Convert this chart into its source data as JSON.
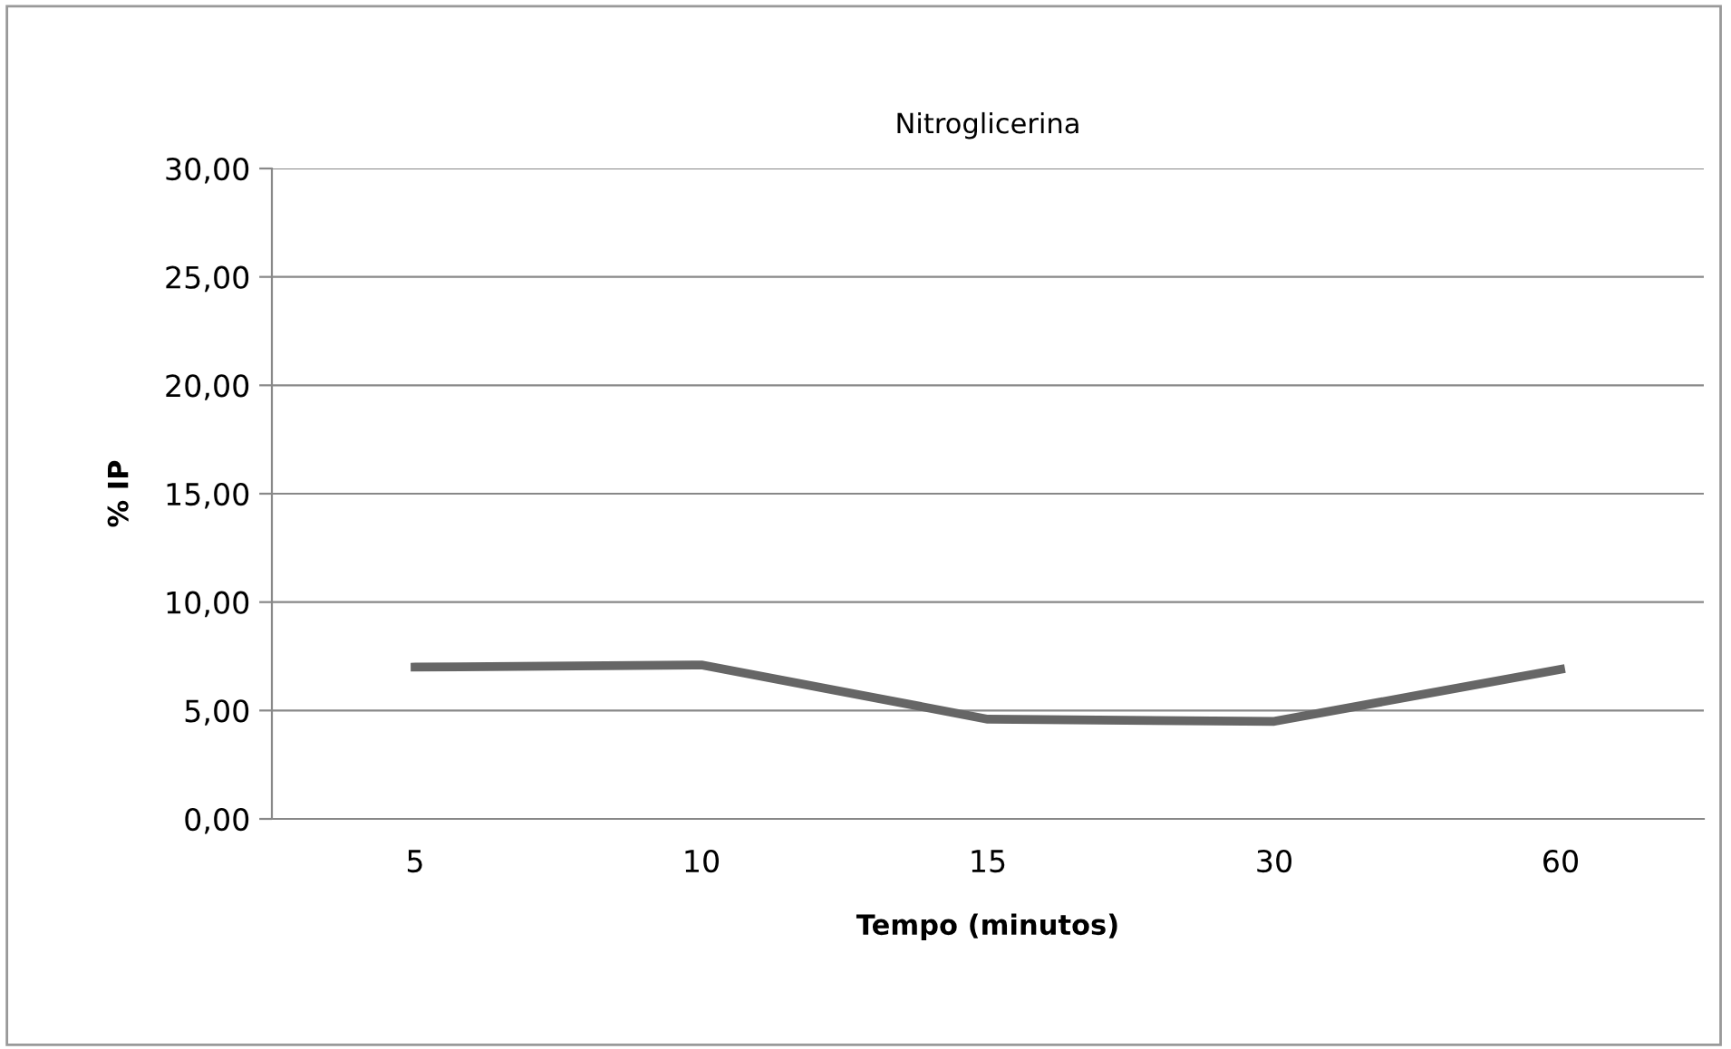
{
  "chart_data": {
    "type": "line",
    "title": "Nitroglicerina",
    "xlabel": "Tempo (minutos)",
    "ylabel": "% IP",
    "categories": [
      "5",
      "10",
      "15",
      "30",
      "60"
    ],
    "series": [
      {
        "color": "#666666",
        "values": [
          7.0,
          7.1,
          4.6,
          4.5,
          6.9
        ]
      }
    ],
    "ylim": [
      0,
      30
    ],
    "yticks": [
      {
        "value": 0,
        "label": "0,00"
      },
      {
        "value": 5,
        "label": "5,00"
      },
      {
        "value": 10,
        "label": "10,00"
      },
      {
        "value": 15,
        "label": "15,00"
      },
      {
        "value": 20,
        "label": "20,00"
      },
      {
        "value": 25,
        "label": "25,00"
      },
      {
        "value": 30,
        "label": "30,00"
      }
    ],
    "grid": "y",
    "marker": "none",
    "line_style": "solid"
  }
}
